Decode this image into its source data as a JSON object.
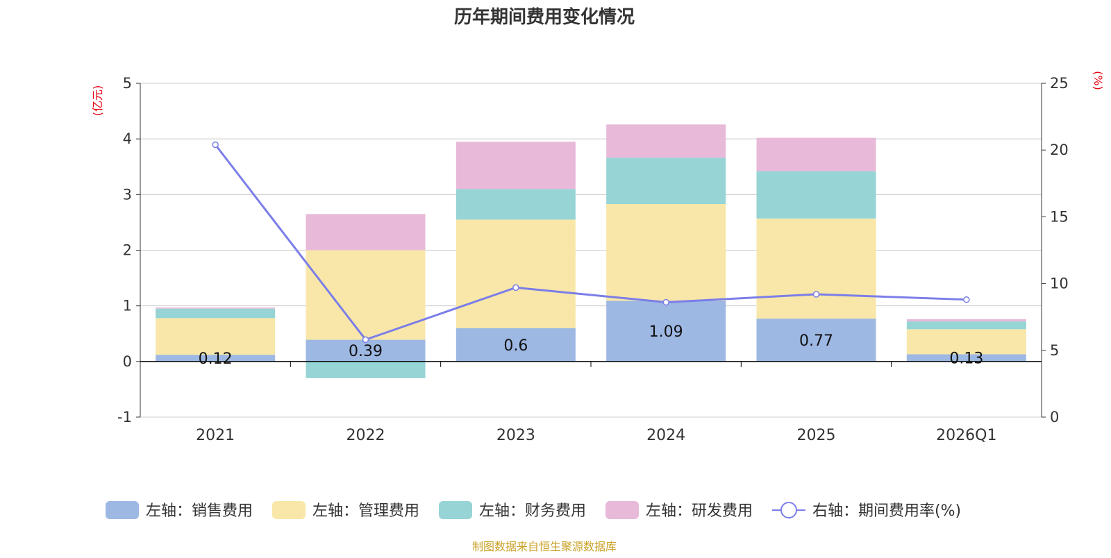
{
  "chart_data": {
    "type": "bar",
    "stacked": true,
    "title": "历年期间费用变化情况",
    "categories": [
      "2021",
      "2022",
      "2023",
      "2024",
      "2025",
      "2026Q1"
    ],
    "left_axis": {
      "label": "(亿元)",
      "range": [
        -1,
        5
      ],
      "ticks": [
        -1,
        0,
        1,
        2,
        3,
        4,
        5
      ]
    },
    "right_axis": {
      "label": "(%)",
      "range": [
        0,
        25
      ],
      "ticks": [
        0,
        5,
        10,
        15,
        20,
        25
      ]
    },
    "series": [
      {
        "name": "左轴：销售费用",
        "axis": "left",
        "kind": "bar",
        "color": "#9db8e3",
        "values": [
          0.12,
          0.39,
          0.6,
          1.09,
          0.77,
          0.13
        ],
        "show_labels": true
      },
      {
        "name": "左轴：管理费用",
        "axis": "left",
        "kind": "bar",
        "color": "#f8e7a8",
        "values": [
          0.66,
          1.61,
          1.95,
          1.74,
          1.8,
          0.45
        ]
      },
      {
        "name": "左轴：财务费用",
        "axis": "left",
        "kind": "bar",
        "color": "#96d4d6",
        "values": [
          0.17,
          -0.3,
          0.55,
          0.83,
          0.85,
          0.14
        ]
      },
      {
        "name": "左轴：研发费用",
        "axis": "left",
        "kind": "bar",
        "color": "#e8b9d9",
        "values": [
          0.02,
          0.65,
          0.85,
          0.6,
          0.6,
          0.04
        ]
      },
      {
        "name": "右轴：期间费用率(%)",
        "axis": "right",
        "kind": "line",
        "color": "#7b7ee8",
        "values": [
          20.4,
          5.8,
          9.7,
          8.6,
          9.2,
          8.8
        ]
      }
    ],
    "grid": true,
    "legend_position": "bottom",
    "source": "制图数据来自恒生聚源数据库"
  }
}
